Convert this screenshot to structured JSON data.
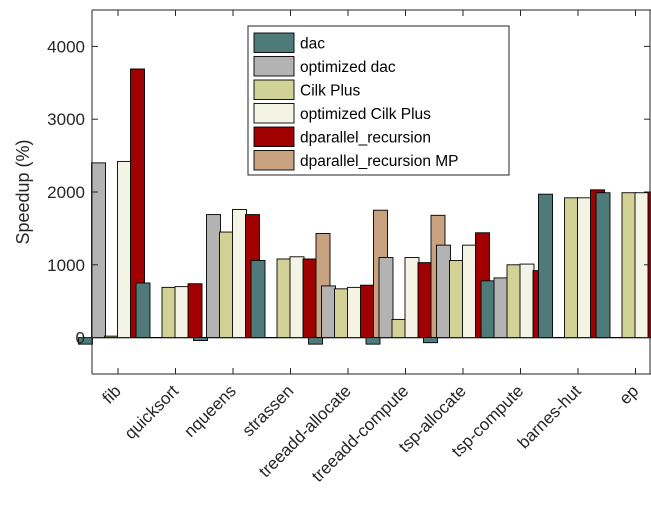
{
  "chart_data": {
    "type": "bar",
    "xlabel": "",
    "ylabel": "Speedup (%)",
    "ylim": [
      -500,
      4500
    ],
    "yticks": [
      0,
      1000,
      2000,
      3000,
      4000
    ],
    "grid": false,
    "legend_position": "top-center",
    "categories": [
      "fib",
      "quicksort",
      "nqueens",
      "strassen",
      "treeadd-allocate",
      "treeadd-compute",
      "tsp-allocate",
      "tsp-compute",
      "barnes-hut",
      "ep"
    ],
    "series": [
      {
        "name": "dac",
        "color": "#4f7a7a",
        "values": [
          -90,
          750,
          -40,
          1060,
          -90,
          -90,
          -70,
          780,
          1970,
          1990
        ]
      },
      {
        "name": "optimized dac",
        "color": "#b3b3b3",
        "values": [
          2400,
          0,
          1690,
          0,
          710,
          1100,
          1270,
          820,
          0,
          0
        ]
      },
      {
        "name": "Cilk Plus",
        "color": "#d2d296",
        "values": [
          20,
          690,
          1450,
          1080,
          670,
          250,
          1060,
          1000,
          1920,
          1990
        ]
      },
      {
        "name": "optimized Cilk Plus",
        "color": "#f3f3e6",
        "values": [
          2420,
          700,
          1760,
          1110,
          690,
          1100,
          1270,
          1010,
          1920,
          1990
        ]
      },
      {
        "name": "dparallel_recursion",
        "color": "#a00000",
        "values": [
          3690,
          740,
          1690,
          1080,
          720,
          1030,
          1440,
          920,
          2030,
          2000
        ]
      },
      {
        "name": "dparallel_recursion MP",
        "color": "#c9a27f",
        "values": [
          0,
          0,
          0,
          1430,
          1750,
          1680,
          0,
          0,
          0,
          0
        ]
      }
    ]
  }
}
